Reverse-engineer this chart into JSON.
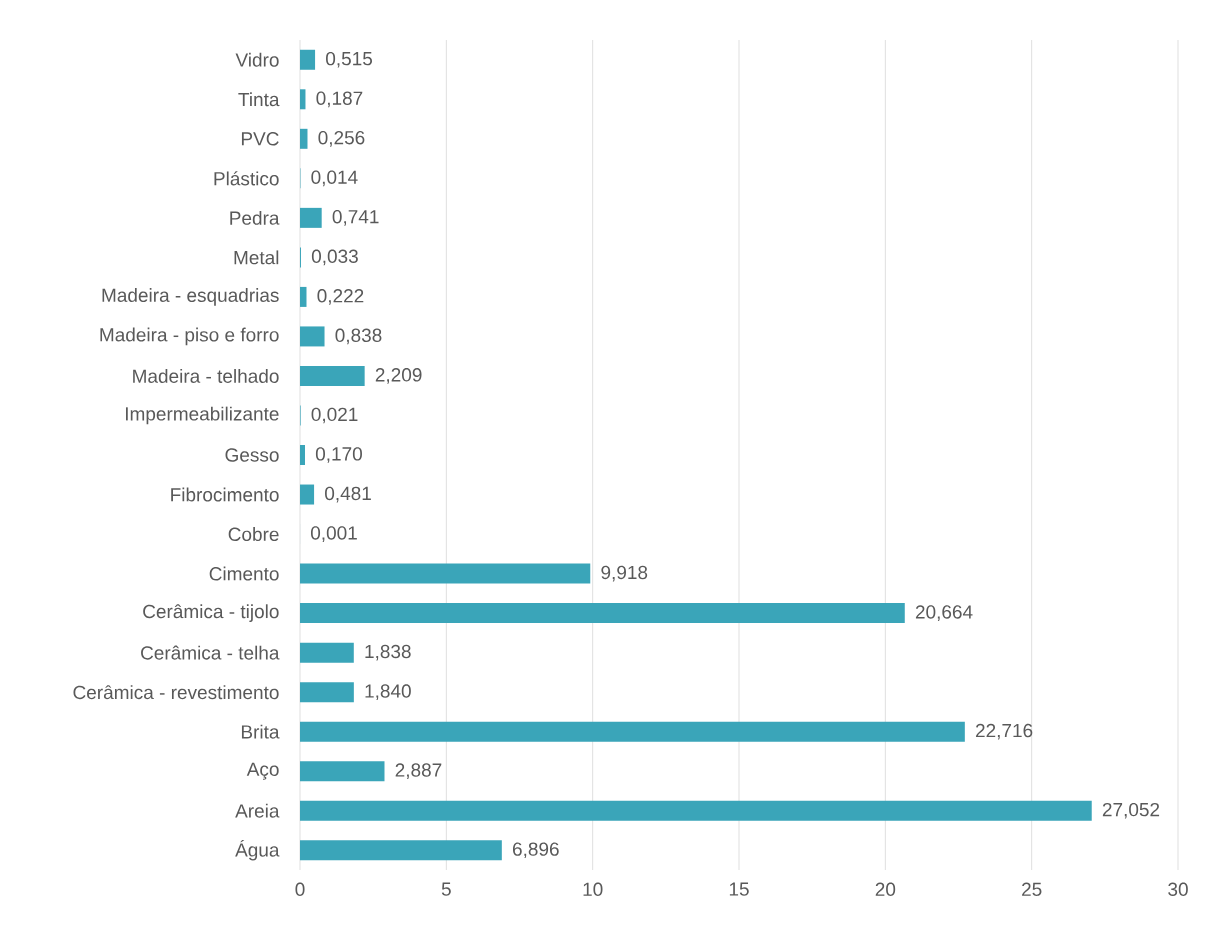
{
  "chart_data": {
    "type": "bar",
    "orientation": "horizontal",
    "categories": [
      "Vidro",
      "Tinta",
      "PVC",
      "Plástico",
      "Pedra",
      "Metal",
      "Madeira - esquadrias",
      "Madeira - piso e forro",
      "Madeira - telhado",
      "Impermeabilizante",
      "Gesso",
      "Fibrocimento",
      "Cobre",
      "Cimento",
      "Cerâmica - tijolo",
      "Cerâmica - telha",
      "Cerâmica - revestimento",
      "Brita",
      "Aço",
      "Areia",
      "Água"
    ],
    "values": [
      0.515,
      0.187,
      0.256,
      0.014,
      0.741,
      0.033,
      0.222,
      0.838,
      2.209,
      0.021,
      0.17,
      0.481,
      0.001,
      9.918,
      20.664,
      1.838,
      1.84,
      22.716,
      2.887,
      27.052,
      6.896
    ],
    "value_labels": [
      "0,515",
      "0,187",
      "0,256",
      "0,014",
      "0,741",
      "0,033",
      "0,222",
      "0,838",
      "2,209",
      "0,021",
      "0,170",
      "0,481",
      "0,001",
      "9,918",
      "20,664",
      "1,838",
      "1,840",
      "22,716",
      "2,887",
      "27,052",
      "6,896"
    ],
    "color": "#3aa5b9",
    "xlim": [
      0,
      30
    ],
    "xticks": [
      0,
      5,
      10,
      15,
      20,
      25,
      30
    ],
    "grid": "x"
  }
}
